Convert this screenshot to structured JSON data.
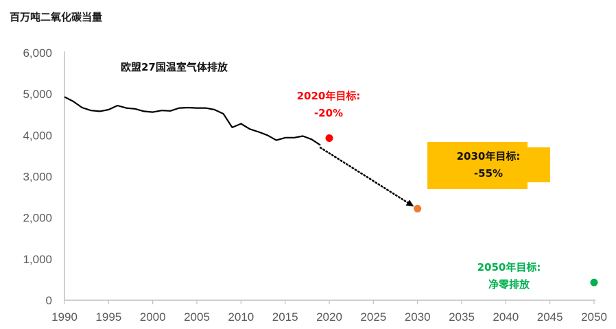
{
  "chart_data": {
    "type": "line",
    "unit_label": "百万吨二氧化碳当量",
    "x_ticks": [
      "1990",
      "1995",
      "2000",
      "2005",
      "2010",
      "2015",
      "2020",
      "2025",
      "2030",
      "2035",
      "2040",
      "2045",
      "2050"
    ],
    "y_ticks": [
      "0",
      "1,000",
      "2,000",
      "3,000",
      "4,000",
      "5,000",
      "6,000"
    ],
    "xlim": [
      1990,
      2050
    ],
    "ylim": [
      0,
      6000
    ],
    "grid": false,
    "series": [
      {
        "name": "欧盟27国温室气体排放",
        "color": "#000000",
        "x": [
          1990,
          1991,
          1992,
          1993,
          1994,
          1995,
          1996,
          1997,
          1998,
          1999,
          2000,
          2001,
          2002,
          2003,
          2004,
          2005,
          2006,
          2007,
          2008,
          2009,
          2010,
          2011,
          2012,
          2013,
          2014,
          2015,
          2016,
          2017,
          2018,
          2019
        ],
        "y": [
          4930,
          4820,
          4670,
          4600,
          4580,
          4620,
          4720,
          4660,
          4640,
          4580,
          4560,
          4600,
          4590,
          4660,
          4670,
          4660,
          4660,
          4620,
          4520,
          4190,
          4280,
          4150,
          4080,
          4000,
          3880,
          3940,
          3940,
          3980,
          3900,
          3760
        ]
      }
    ],
    "projection": {
      "style": "dotted-arrow",
      "color": "#000000",
      "from": [
        2019,
        3700
      ],
      "to": [
        2029.6,
        2270
      ]
    },
    "targets": [
      {
        "year": 2020,
        "value": 3930,
        "line1": "2020年目标:",
        "line2": "-20%",
        "color": "#ff0000",
        "text_color": "#ff0000",
        "boxed": false
      },
      {
        "year": 2030,
        "value": 2220,
        "line1": "2030年目标:",
        "line2": "-55%",
        "color": "#ed7d31",
        "text_color": "#111111",
        "boxed": true,
        "box_color": "#ffc000"
      },
      {
        "year": 2050,
        "value": 430,
        "line1": "2050年目标:",
        "line2": "净零排放",
        "color": "#00b050",
        "text_color": "#00b050",
        "boxed": false
      }
    ]
  }
}
